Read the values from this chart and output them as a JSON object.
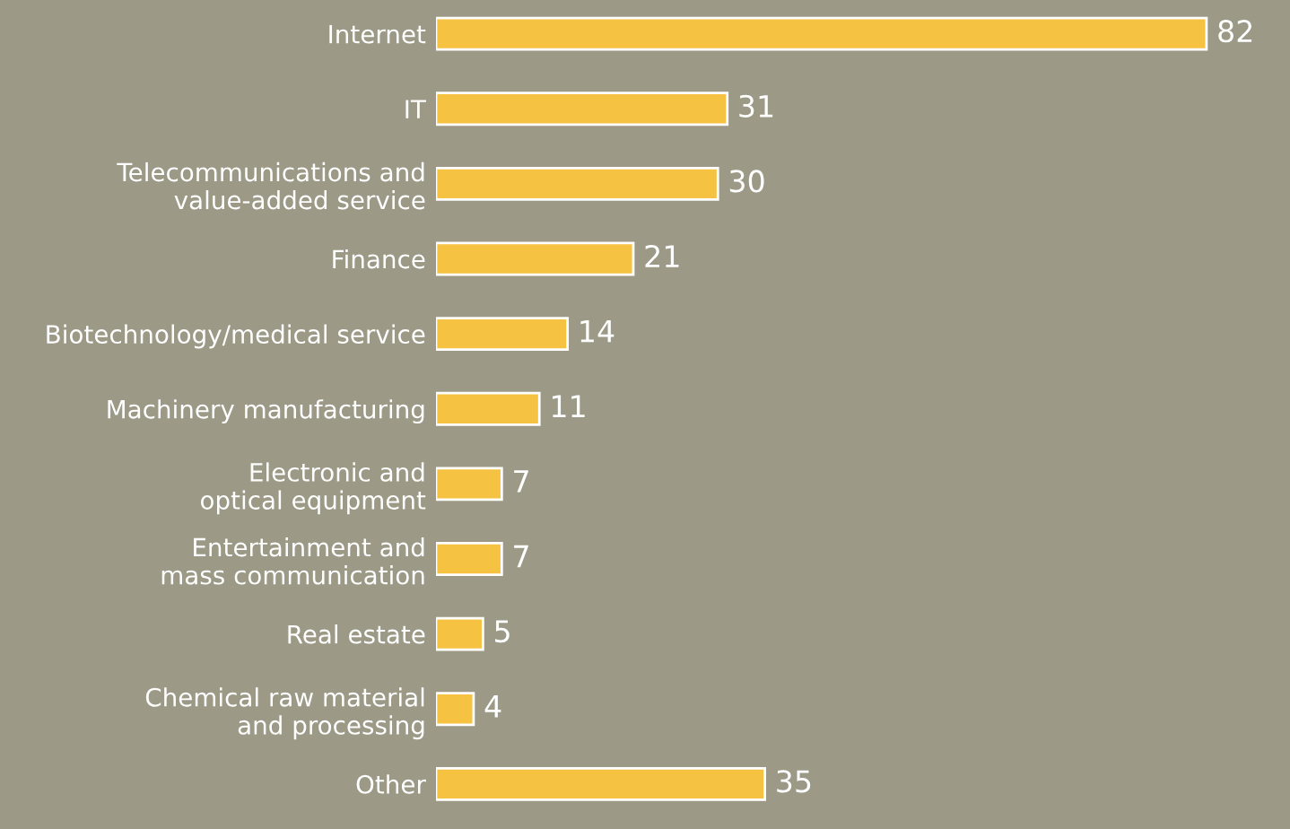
{
  "chart_data": {
    "type": "bar",
    "orientation": "horizontal",
    "data_labels": true,
    "grid": false,
    "legend": false,
    "tick_labels": "y",
    "categories": [
      "Internet",
      "IT",
      "Telecommunications and\nvalue-added service",
      "Finance",
      "Biotechnology/medical service",
      "Machinery manufacturing",
      "Electronic and\noptical equipment",
      "Entertainment and\nmass communication",
      "Real estate",
      "Chemical raw material\nand processing",
      "Other"
    ],
    "values": [
      82,
      31,
      30,
      21,
      14,
      11,
      7,
      7,
      5,
      4,
      35
    ],
    "color": "#f5c242"
  }
}
